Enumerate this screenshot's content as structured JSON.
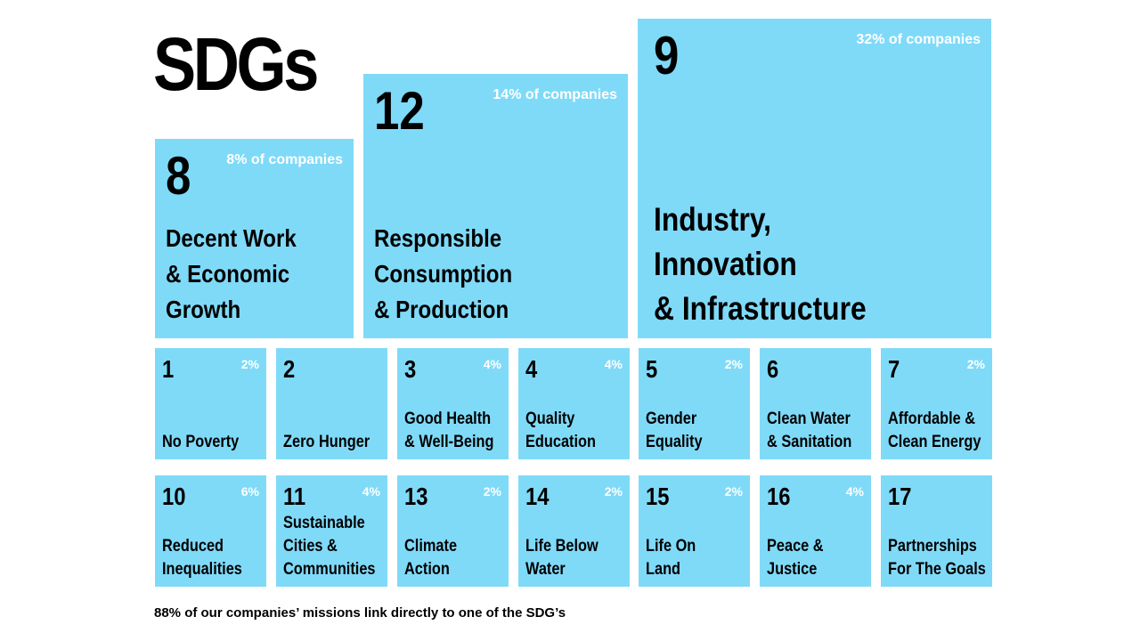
{
  "title": "SDGs",
  "featured_goals": [
    {
      "number": "8",
      "percent": "8% of companies",
      "name_lines": [
        "Decent Work",
        "& Economic",
        "Growth"
      ]
    },
    {
      "number": "12",
      "percent": "14% of companies",
      "name_lines": [
        "Responsible",
        "Consumption",
        "& Production"
      ]
    },
    {
      "number": "9",
      "percent": "32% of companies",
      "name_lines": [
        "Industry,",
        "Innovation",
        "& Infrastructure"
      ]
    }
  ],
  "goals": [
    {
      "number": "1",
      "percent": "2%",
      "name_lines": [
        "No Poverty"
      ]
    },
    {
      "number": "2",
      "percent": "",
      "name_lines": [
        "Zero Hunger"
      ]
    },
    {
      "number": "3",
      "percent": "4%",
      "name_lines": [
        "Good Health",
        "& Well-Being"
      ]
    },
    {
      "number": "4",
      "percent": "4%",
      "name_lines": [
        "Quality",
        "Education"
      ]
    },
    {
      "number": "5",
      "percent": "2%",
      "name_lines": [
        "Gender",
        "Equality"
      ]
    },
    {
      "number": "6",
      "percent": "",
      "name_lines": [
        "Clean Water",
        "& Sanitation"
      ]
    },
    {
      "number": "7",
      "percent": "2%",
      "name_lines": [
        "Affordable &",
        "Clean Energy"
      ]
    },
    {
      "number": "10",
      "percent": "6%",
      "name_lines": [
        "Reduced",
        "Inequalities"
      ]
    },
    {
      "number": "11",
      "percent": "4%",
      "name_lines": [
        "Sustainable",
        "Cities &",
        "Communities"
      ]
    },
    {
      "number": "13",
      "percent": "2%",
      "name_lines": [
        "Climate",
        "Action"
      ]
    },
    {
      "number": "14",
      "percent": "2%",
      "name_lines": [
        "Life Below",
        "Water"
      ]
    },
    {
      "number": "15",
      "percent": "2%",
      "name_lines": [
        "Life On",
        "Land"
      ]
    },
    {
      "number": "16",
      "percent": "4%",
      "name_lines": [
        "Peace &",
        "Justice"
      ]
    },
    {
      "number": "17",
      "percent": "",
      "name_lines": [
        "Partnerships",
        "For The Goals"
      ]
    }
  ],
  "footnote": "88% of our companies’ missions link directly to one of the SDG’s",
  "colors": {
    "tile": "#7fdaf8",
    "percent_text": "#ffffff",
    "text": "#000000"
  }
}
